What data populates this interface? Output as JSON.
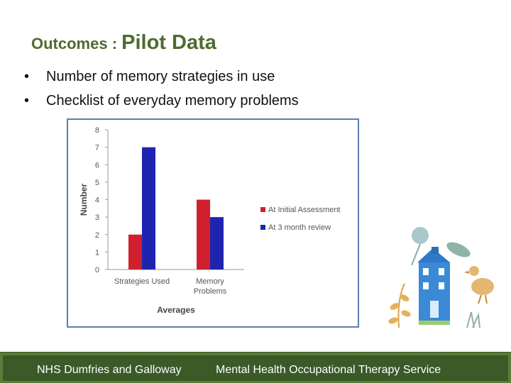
{
  "slide": {
    "title_part1": "Outcomes : ",
    "title_part2": "Pilot Data",
    "bullets": [
      "Number of memory strategies in use",
      "Checklist of everyday memory problems"
    ],
    "bullet_symbol": "•"
  },
  "chart_data": {
    "type": "bar",
    "categories": [
      "Strategies Used",
      "Memory Problems"
    ],
    "category_lines": [
      [
        "Strategies Used"
      ],
      [
        "Memory",
        "Problems"
      ]
    ],
    "series": [
      {
        "name": "At Initial Assessment",
        "values": [
          2,
          4
        ],
        "color": "#d0202e"
      },
      {
        "name": "At 3 month review",
        "values": [
          7,
          3
        ],
        "color": "#1f24b0"
      }
    ],
    "ylabel": "Number",
    "xlabel": "Averages",
    "ylim": [
      0,
      8
    ],
    "yticks": [
      0,
      1,
      2,
      3,
      4,
      5,
      6,
      7,
      8
    ],
    "legend_position": "right",
    "grid": false
  },
  "footer": {
    "org": "NHS Dumfries and Galloway",
    "service": "Mental Health Occupational Therapy Service"
  },
  "colors": {
    "title": "#4e6b2f",
    "footer_bg": "#3a5a28",
    "chart_border": "#5b7fae"
  }
}
